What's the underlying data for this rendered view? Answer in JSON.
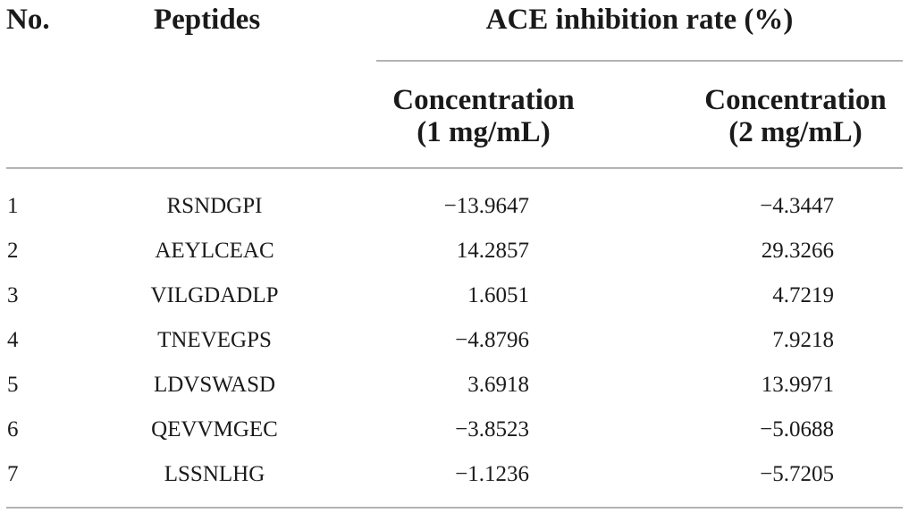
{
  "table": {
    "header": {
      "no": "No.",
      "peptides": "Peptides",
      "group": "ACE inhibition rate (%)",
      "col1_line1": "Concentration",
      "col1_line2": "(1 mg/mL)",
      "col2_line1": "Concentration",
      "col2_line2": "(2 mg/mL)"
    },
    "rows": [
      {
        "no": "1",
        "peptide": "RSNDGPI",
        "v1": "−13.9647",
        "v2": "−4.3447"
      },
      {
        "no": "2",
        "peptide": "AEYLCEAC",
        "v1": "14.2857",
        "v2": "29.3266"
      },
      {
        "no": "3",
        "peptide": "VILGDADLP",
        "v1": "1.6051",
        "v2": "4.7219"
      },
      {
        "no": "4",
        "peptide": "TNEVEGPS",
        "v1": "−4.8796",
        "v2": "7.9218"
      },
      {
        "no": "5",
        "peptide": "LDVSWASD",
        "v1": "3.6918",
        "v2": "13.9971"
      },
      {
        "no": "6",
        "peptide": "QEVVMGEC",
        "v1": "−3.8523",
        "v2": "−5.0688"
      },
      {
        "no": "7",
        "peptide": "LSSNLHG",
        "v1": "−1.1236",
        "v2": "−5.7205"
      }
    ]
  }
}
